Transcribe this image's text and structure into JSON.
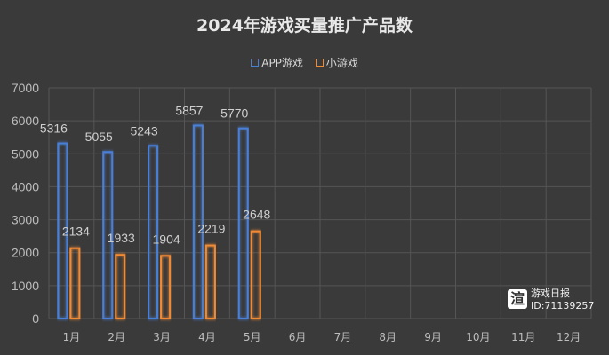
{
  "chart_data": {
    "type": "bar",
    "title": "2024年游戏买量推广产品数",
    "categories": [
      "1月",
      "2月",
      "3月",
      "4月",
      "5月",
      "6月",
      "7月",
      "8月",
      "9月",
      "10月",
      "11月",
      "12月"
    ],
    "series": [
      {
        "name": "APP游戏",
        "color": "#4a7fd6",
        "values": [
          5316,
          5055,
          5243,
          5857,
          5770,
          null,
          null,
          null,
          null,
          null,
          null,
          null
        ]
      },
      {
        "name": "小游戏",
        "color": "#f08a35",
        "values": [
          2134,
          1933,
          1904,
          2219,
          2648,
          null,
          null,
          null,
          null,
          null,
          null,
          null
        ]
      }
    ],
    "ylim": [
      0,
      7000
    ],
    "yticks": [
      0,
      1000,
      2000,
      3000,
      4000,
      5000,
      6000,
      7000
    ],
    "grid": true,
    "legend": "top"
  },
  "watermark": {
    "name": "游戏日报",
    "id": "ID:71139257",
    "logo": "渲"
  }
}
